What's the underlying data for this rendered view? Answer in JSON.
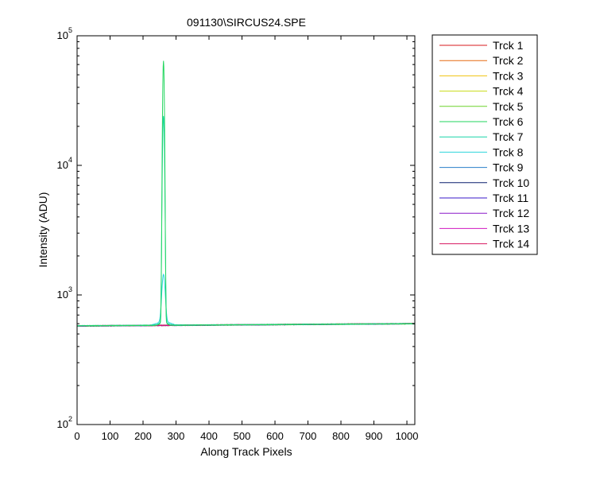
{
  "chart_data": {
    "type": "line",
    "title": "091130\\SIRCUS24.SPE",
    "xlabel": "Along Track Pixels",
    "ylabel": "Intensity (ADU)",
    "xlim": [
      0,
      1024
    ],
    "ylim": [
      100,
      100000
    ],
    "yscale": "log",
    "grid": false,
    "legend_position": "outside-right",
    "x_ticks": [
      0,
      100,
      200,
      300,
      400,
      500,
      600,
      700,
      800,
      900,
      1000
    ],
    "y_ticks": [
      {
        "base": "10",
        "exp": "2",
        "value": 100
      },
      {
        "base": "10",
        "exp": "3",
        "value": 1000
      },
      {
        "base": "10",
        "exp": "4",
        "value": 10000
      },
      {
        "base": "10",
        "exp": "5",
        "value": 100000
      }
    ],
    "series": [
      {
        "name": "Trck 1",
        "color": "#d7191c",
        "baseline": [
          575,
          600
        ],
        "peak": null
      },
      {
        "name": "Trck 2",
        "color": "#e66a10",
        "baseline": [
          576,
          601
        ],
        "peak": null
      },
      {
        "name": "Trck 3",
        "color": "#f0c20e",
        "baseline": [
          577,
          600
        ],
        "peak": null
      },
      {
        "name": "Trck 4",
        "color": "#c8dc14",
        "baseline": [
          576,
          600
        ],
        "peak": null
      },
      {
        "name": "Trck 5",
        "color": "#6bd22a",
        "baseline": [
          577,
          601
        ],
        "peak": null
      },
      {
        "name": "Trck 6",
        "color": "#22d65e",
        "baseline": [
          577,
          600
        ],
        "peak": {
          "x": 262,
          "value": 64000,
          "width": 2.2
        }
      },
      {
        "name": "Trck 7",
        "color": "#18d6a8",
        "baseline": [
          578,
          600
        ],
        "peak": {
          "x": 262,
          "value": 24000,
          "width": 2.6
        }
      },
      {
        "name": "Trck 8",
        "color": "#2cd4dc",
        "baseline": [
          578,
          600
        ],
        "peak": {
          "x": 262,
          "value": 1400,
          "width": 4.5
        }
      },
      {
        "name": "Trck 9",
        "color": "#2a7fc8",
        "baseline": [
          577,
          600
        ],
        "peak": null
      },
      {
        "name": "Trck 10",
        "color": "#0a1f6e",
        "baseline": [
          576,
          600
        ],
        "peak": null
      },
      {
        "name": "Trck 11",
        "color": "#3a18c8",
        "baseline": [
          576,
          600
        ],
        "peak": null
      },
      {
        "name": "Trck 12",
        "color": "#8a18c8",
        "baseline": [
          575,
          600
        ],
        "peak": null
      },
      {
        "name": "Trck 13",
        "color": "#d018c0",
        "baseline": [
          576,
          601
        ],
        "peak": null
      },
      {
        "name": "Trck 14",
        "color": "#d81860",
        "baseline": [
          577,
          602
        ],
        "peak": null
      }
    ]
  }
}
